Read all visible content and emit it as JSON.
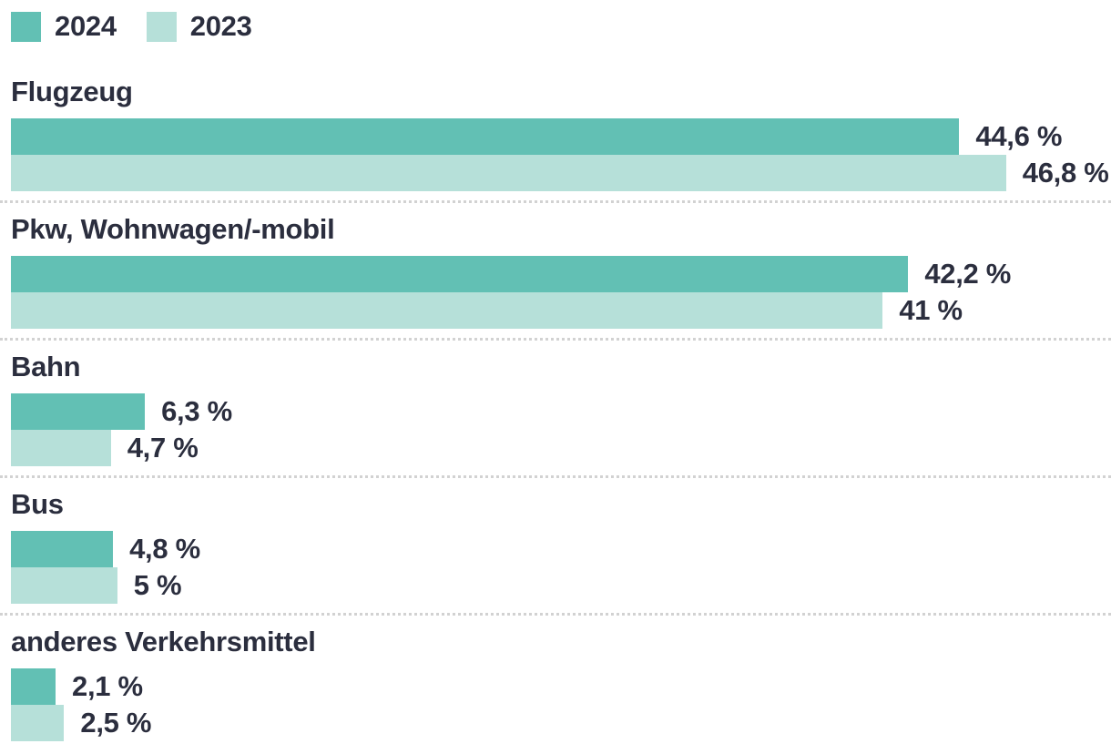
{
  "legend": {
    "items": [
      {
        "label": "2024"
      },
      {
        "label": "2023"
      }
    ]
  },
  "colors": {
    "series_2024": "#62c0b4",
    "series_2023": "#b6e0d9",
    "text": "#2b2e3e",
    "separator": "#d2d2d2"
  },
  "chart_data": {
    "type": "bar",
    "orientation": "horizontal",
    "title": "",
    "categories": [
      "Flugzeug",
      "Pkw, Wohnwagen/-mobil",
      "Bahn",
      "Bus",
      "anderes Verkehrsmittel"
    ],
    "series": [
      {
        "name": "2024",
        "values": [
          44.6,
          42.2,
          6.3,
          4.8,
          2.1
        ],
        "display_values": [
          "44,6 %",
          "42,2 %",
          "6,3 %",
          "4,8 %",
          "2,1 %"
        ]
      },
      {
        "name": "2023",
        "values": [
          46.8,
          41,
          4.7,
          5,
          2.5
        ],
        "display_values": [
          "46,8 %",
          "41 %",
          "4,7 %",
          "5 %",
          "2,5 %"
        ]
      }
    ],
    "value_unit": "%",
    "xlim": [
      0,
      46.8
    ],
    "grid": false,
    "legend_position": "top",
    "value_labels": "outside-end"
  }
}
